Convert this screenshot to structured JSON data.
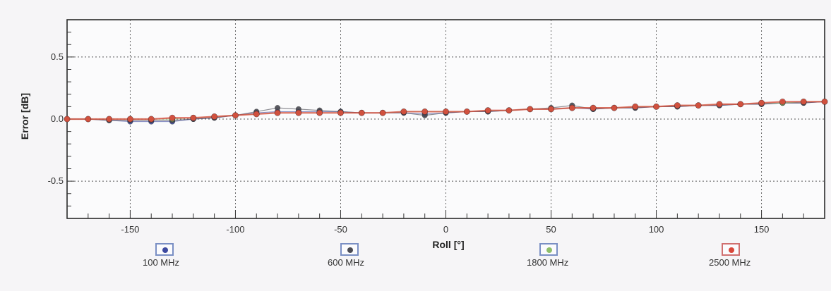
{
  "chart_data": {
    "type": "scatter",
    "title": "",
    "xlabel": "Roll [°]",
    "ylabel": "Error [dB]",
    "xlim": [
      -180,
      180
    ],
    "ylim": [
      -0.8,
      0.8
    ],
    "x_ticks": [
      -150,
      -100,
      -50,
      0,
      50,
      100,
      150
    ],
    "x_tick_labels": [
      "-150",
      "-100",
      "-50",
      "0",
      "50",
      "100",
      "150"
    ],
    "y_ticks": [
      -0.5,
      0.0,
      0.5
    ],
    "y_tick_labels": [
      "-0.5",
      "0.0",
      "0.5"
    ],
    "grid": true,
    "legend_position": "bottom",
    "x": [
      -180,
      -170,
      -160,
      -150,
      -140,
      -130,
      -120,
      -110,
      -100,
      -90,
      -80,
      -70,
      -60,
      -50,
      -40,
      -30,
      -20,
      -10,
      0,
      10,
      20,
      30,
      40,
      50,
      60,
      70,
      80,
      90,
      100,
      110,
      120,
      130,
      140,
      150,
      160,
      170,
      180
    ],
    "series": [
      {
        "name": "100 MHz",
        "color": "#3d4aa0",
        "values": [
          0.0,
          0.0,
          -0.01,
          -0.02,
          -0.02,
          -0.02,
          0.0,
          0.01,
          0.03,
          0.05,
          0.06,
          0.06,
          0.06,
          0.06,
          0.05,
          0.05,
          0.05,
          0.04,
          0.05,
          0.06,
          0.06,
          0.07,
          0.08,
          0.08,
          0.09,
          0.08,
          0.09,
          0.09,
          0.1,
          0.1,
          0.11,
          0.11,
          0.12,
          0.12,
          0.13,
          0.13,
          0.14
        ]
      },
      {
        "name": "600 MHz",
        "color": "#4a4a52",
        "values": [
          0.0,
          0.0,
          -0.01,
          -0.01,
          -0.01,
          -0.01,
          0.0,
          0.01,
          0.03,
          0.06,
          0.09,
          0.08,
          0.07,
          0.06,
          0.05,
          0.05,
          0.05,
          0.03,
          0.05,
          0.06,
          0.06,
          0.07,
          0.08,
          0.09,
          0.11,
          0.08,
          0.09,
          0.09,
          0.1,
          0.1,
          0.11,
          0.11,
          0.12,
          0.12,
          0.13,
          0.13,
          0.14
        ]
      },
      {
        "name": "1800 MHz",
        "color": "#8fbf6a",
        "values": [
          0.0,
          0.0,
          0.0,
          0.0,
          0.0,
          0.0,
          0.01,
          0.02,
          0.03,
          0.04,
          0.05,
          0.05,
          0.05,
          0.05,
          0.05,
          0.05,
          0.06,
          0.06,
          0.06,
          0.06,
          0.07,
          0.07,
          0.08,
          0.08,
          0.09,
          0.09,
          0.09,
          0.1,
          0.1,
          0.11,
          0.11,
          0.12,
          0.12,
          0.13,
          0.13,
          0.14,
          0.14
        ]
      },
      {
        "name": "2500 MHz",
        "color": "#d9473a",
        "values": [
          0.0,
          0.0,
          0.0,
          0.0,
          0.0,
          0.01,
          0.01,
          0.02,
          0.03,
          0.04,
          0.05,
          0.05,
          0.05,
          0.05,
          0.05,
          0.05,
          0.06,
          0.06,
          0.06,
          0.06,
          0.07,
          0.07,
          0.08,
          0.08,
          0.09,
          0.09,
          0.09,
          0.1,
          0.1,
          0.11,
          0.11,
          0.12,
          0.12,
          0.13,
          0.14,
          0.14,
          0.14
        ]
      }
    ]
  }
}
